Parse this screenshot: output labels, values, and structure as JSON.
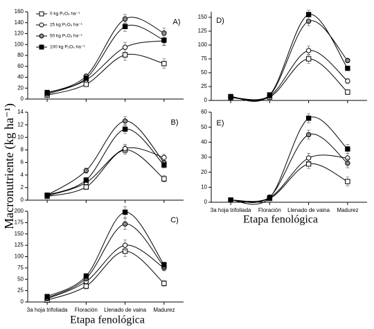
{
  "ylabel": "Macronutriente (kg ha⁻¹)",
  "xlabel": "Etapa fenológica",
  "chart_data": [
    {
      "type": "line",
      "title": "A)",
      "categories": [
        null,
        null,
        null,
        null
      ],
      "ylim": [
        0,
        160
      ],
      "yticks": [
        0,
        20,
        40,
        60,
        80,
        100,
        120,
        140,
        160
      ],
      "legend": "top-left",
      "series": [
        {
          "name": "0 kg P₂O₅ ha⁻¹",
          "color": "#ffffff",
          "marker": "square",
          "values": [
            7,
            27,
            81,
            65
          ],
          "errors": [
            2,
            3,
            10,
            9
          ]
        },
        {
          "name": "25 kg P₂O₅ ha⁻¹",
          "color": "#ffffff",
          "marker": "circle",
          "values": [
            9,
            35,
            95,
            107
          ],
          "errors": [
            2,
            3,
            9,
            9
          ]
        },
        {
          "name": "50 kg P₂O₅ ha⁻¹",
          "color": "#8c8c8c",
          "marker": "circle",
          "values": [
            11,
            42,
            147,
            121
          ],
          "errors": [
            2,
            3,
            8,
            9
          ]
        },
        {
          "name": "100 kg P₂O₅ ha⁻¹",
          "color": "#000000",
          "marker": "square",
          "values": [
            12,
            38,
            133,
            108
          ],
          "errors": [
            2,
            3,
            9,
            9
          ]
        }
      ]
    },
    {
      "type": "line",
      "title": "B)",
      "categories": [
        null,
        null,
        null,
        null
      ],
      "ylim": [
        0,
        14
      ],
      "yticks": [
        0,
        2,
        4,
        6,
        8,
        10,
        12,
        14
      ],
      "series": [
        {
          "color": "#ffffff",
          "marker": "square",
          "values": [
            0.6,
            2.1,
            8.0,
            3.4
          ],
          "errors": [
            0.2,
            0.4,
            0.7,
            0.5
          ]
        },
        {
          "color": "#ffffff",
          "marker": "circle",
          "values": [
            0.7,
            2.8,
            8.2,
            6.8
          ],
          "errors": [
            0.2,
            0.4,
            0.7,
            0.5
          ]
        },
        {
          "color": "#8c8c8c",
          "marker": "circle",
          "values": [
            0.8,
            4.7,
            12.6,
            6.0
          ],
          "errors": [
            0.2,
            0.4,
            0.7,
            0.5
          ]
        },
        {
          "color": "#000000",
          "marker": "square",
          "values": [
            0.8,
            3.2,
            11.3,
            5.6
          ],
          "errors": [
            0.2,
            0.4,
            0.7,
            0.5
          ]
        }
      ]
    },
    {
      "type": "line",
      "title": "C)",
      "categories": [
        "3a hoja trifoliada",
        "Floración",
        "Llenado de vaina",
        "Madurez"
      ],
      "ylim": [
        0,
        200
      ],
      "yticks": [
        0,
        25,
        50,
        75,
        100,
        125,
        150,
        175,
        200
      ],
      "series": [
        {
          "color": "#ffffff",
          "marker": "square",
          "values": [
            4,
            35,
            112,
            41
          ],
          "errors": [
            3,
            6,
            12,
            6
          ]
        },
        {
          "color": "#ffffff",
          "marker": "circle",
          "values": [
            7,
            45,
            125,
            75
          ],
          "errors": [
            3,
            6,
            12,
            6
          ]
        },
        {
          "color": "#8c8c8c",
          "marker": "circle",
          "values": [
            9,
            52,
            172,
            78
          ],
          "errors": [
            3,
            6,
            12,
            6
          ]
        },
        {
          "color": "#000000",
          "marker": "square",
          "values": [
            12,
            57,
            198,
            82
          ],
          "errors": [
            3,
            6,
            12,
            6
          ]
        }
      ]
    },
    {
      "type": "line",
      "title": "D)",
      "categories": [
        null,
        null,
        null,
        null
      ],
      "ylim": [
        0,
        160
      ],
      "yticks": [
        0,
        25,
        50,
        75,
        100,
        125,
        150
      ],
      "series": [
        {
          "color": "#ffffff",
          "marker": "square",
          "values": [
            5,
            6,
            75,
            15
          ],
          "errors": [
            2,
            2,
            8,
            4
          ]
        },
        {
          "color": "#ffffff",
          "marker": "circle",
          "values": [
            6,
            8,
            90,
            35
          ],
          "errors": [
            2,
            2,
            8,
            4
          ]
        },
        {
          "color": "#8c8c8c",
          "marker": "circle",
          "values": [
            7,
            9,
            143,
            72
          ],
          "errors": [
            2,
            2,
            8,
            4
          ]
        },
        {
          "color": "#000000",
          "marker": "square",
          "values": [
            7,
            10,
            155,
            58
          ],
          "errors": [
            2,
            2,
            8,
            4
          ]
        }
      ]
    },
    {
      "type": "line",
      "title": "E)",
      "categories": [
        "3a hoja trifoliada",
        "Floración",
        "Llenado de vaina",
        "Madurez"
      ],
      "ylim": [
        0,
        60
      ],
      "yticks": [
        0,
        10,
        20,
        30,
        40,
        50,
        60
      ],
      "series": [
        {
          "color": "#ffffff",
          "marker": "square",
          "values": [
            1.5,
            2.5,
            25.5,
            13.8
          ],
          "errors": [
            0.5,
            0.5,
            3,
            3
          ]
        },
        {
          "color": "#ffffff",
          "marker": "circle",
          "values": [
            1.5,
            3,
            29.5,
            29.5
          ],
          "errors": [
            0.5,
            0.5,
            3,
            3
          ]
        },
        {
          "color": "#8c8c8c",
          "marker": "circle",
          "values": [
            1.5,
            3.5,
            45,
            26
          ],
          "errors": [
            0.5,
            0.5,
            3,
            3
          ]
        },
        {
          "color": "#000000",
          "marker": "square",
          "values": [
            1.5,
            3,
            56,
            35.5
          ],
          "errors": [
            0.5,
            0.5,
            3,
            3
          ]
        }
      ]
    }
  ]
}
